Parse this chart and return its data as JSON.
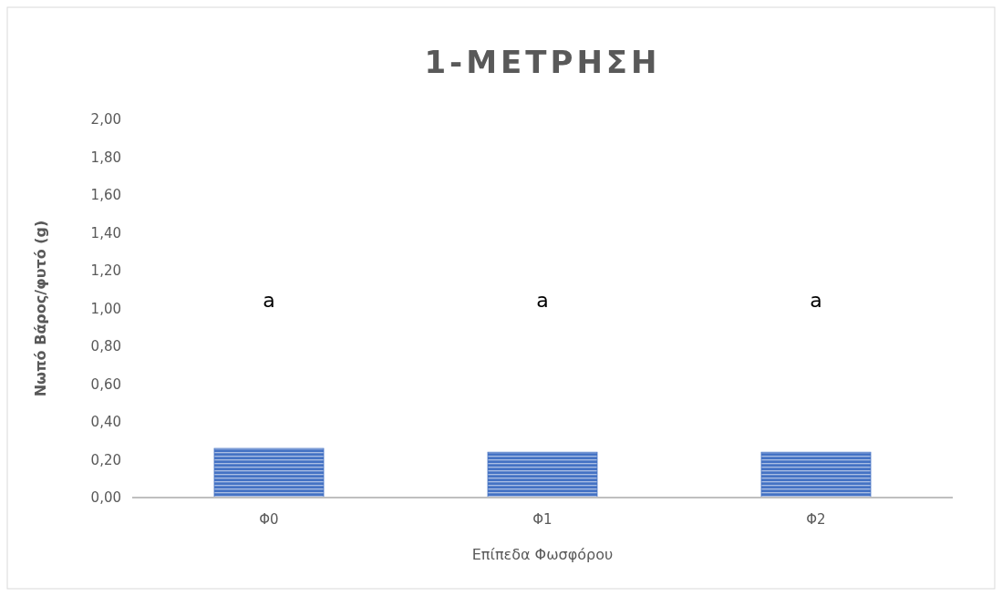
{
  "chart_data": {
    "type": "bar",
    "title": "1-ΜΕΤΡΗΣΗ",
    "xlabel": "Επίπεδα Φωσφόρου",
    "ylabel": "Νωπό Βάρος/φυτό (g)",
    "categories": [
      "Φ0",
      "Φ1",
      "Φ2"
    ],
    "values": [
      0.26,
      0.24,
      0.24
    ],
    "color": "#4472c4",
    "ylim": [
      0,
      2
    ],
    "yticks": [
      {
        "value": 0,
        "label": "0,00"
      },
      {
        "value": 0.2,
        "label": "0,20"
      },
      {
        "value": 0.4,
        "label": "0,40"
      },
      {
        "value": 0.6,
        "label": "0,60"
      },
      {
        "value": 0.8,
        "label": "0,80"
      },
      {
        "value": 1,
        "label": "1,00"
      },
      {
        "value": 1.2,
        "label": "1,20"
      },
      {
        "value": 1.4,
        "label": "1,40"
      },
      {
        "value": 1.6,
        "label": "1,60"
      },
      {
        "value": 1.8,
        "label": "1,80"
      },
      {
        "value": 2,
        "label": "2,00"
      }
    ],
    "annotations": [
      "a",
      "a",
      "a"
    ],
    "grid": false
  }
}
